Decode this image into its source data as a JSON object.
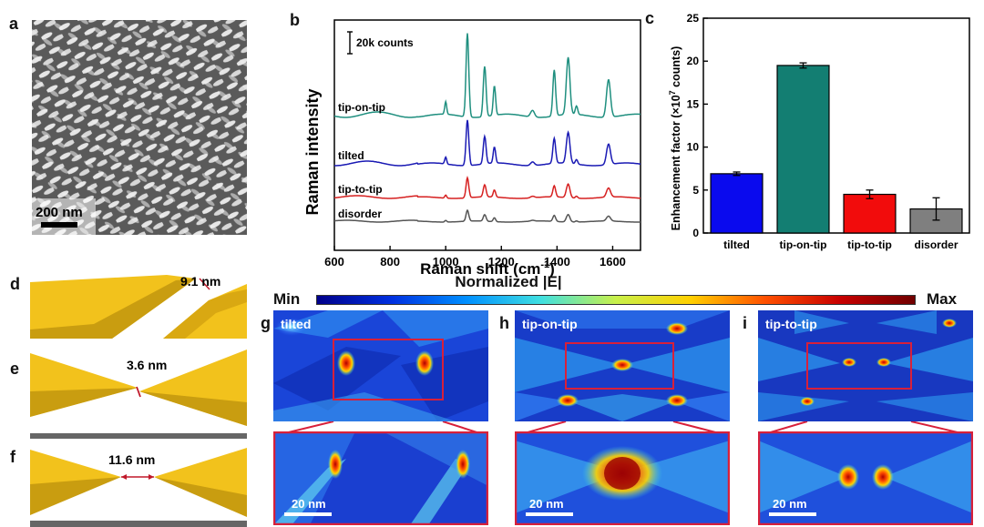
{
  "panels": {
    "a": "a",
    "b": "b",
    "c": "c",
    "d": "d",
    "e": "e",
    "f": "f",
    "g": "g",
    "h": "h",
    "i": "i"
  },
  "sem": {
    "scale_label": "200 nm"
  },
  "raman": {
    "ylabel": "Raman intensity",
    "xlabel_main": "Raman shift (cm",
    "xlabel_sup": "-1",
    "xlabel_end": ")",
    "scale_bar": "20k counts",
    "ticks": [
      "600",
      "800",
      "1000",
      "1200",
      "1400",
      "1600"
    ],
    "series": [
      {
        "name": "tip-on-tip",
        "color": "#1f8f7f"
      },
      {
        "name": "tilted",
        "color": "#1a1ab4"
      },
      {
        "name": "tip-to-tip",
        "color": "#d62020"
      },
      {
        "name": "disorder",
        "color": "#555555"
      }
    ]
  },
  "chart_data": {
    "type": "bar",
    "categories": [
      "tilted",
      "tip-on-tip",
      "tip-to-tip",
      "disorder"
    ],
    "values": [
      6.9,
      19.5,
      4.5,
      2.8
    ],
    "errors": [
      0.2,
      0.3,
      0.5,
      1.3
    ],
    "colors": [
      "#0a0aee",
      "#137e72",
      "#f20c0c",
      "#7f7f7f"
    ],
    "ylabel_main": "Enhancement factor (×10",
    "ylabel_sup": "7",
    "ylabel_end": " counts)",
    "ylim": [
      0,
      25
    ],
    "yticks": [
      "0",
      "5",
      "10",
      "15",
      "20",
      "25"
    ]
  },
  "gaps": {
    "d": "9.1 nm",
    "e": "3.6 nm",
    "f": "11.6 nm"
  },
  "field": {
    "title": "Normalized |E|",
    "min": "Min",
    "max": "Max"
  },
  "sims": {
    "g": {
      "label": "tilted",
      "scale": "20 nm"
    },
    "h": {
      "label": "tip-on-tip",
      "scale": "20 nm"
    },
    "i": {
      "label": "tip-to-tip",
      "scale": "20 nm"
    }
  }
}
